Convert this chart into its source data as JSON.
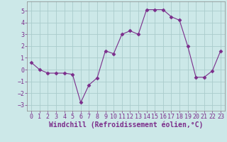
{
  "x": [
    0,
    1,
    2,
    3,
    4,
    5,
    6,
    7,
    8,
    9,
    10,
    11,
    12,
    13,
    14,
    15,
    16,
    17,
    18,
    19,
    20,
    21,
    22,
    23
  ],
  "y": [
    0.6,
    0.0,
    -0.3,
    -0.3,
    -0.3,
    -0.4,
    -2.8,
    -1.3,
    -0.7,
    1.6,
    1.35,
    3.0,
    3.3,
    3.0,
    5.1,
    5.1,
    5.1,
    4.5,
    4.2,
    2.0,
    -0.65,
    -0.65,
    -0.1,
    1.6
  ],
  "line_color": "#7b2d8b",
  "marker": "D",
  "marker_size": 2.5,
  "bg_color": "#cce8e8",
  "grid_color": "#aacccc",
  "xlabel": "Windchill (Refroidissement éolien,°C)",
  "xlim": [
    -0.5,
    23.5
  ],
  "ylim": [
    -3.5,
    5.8
  ],
  "yticks": [
    -3,
    -2,
    -1,
    0,
    1,
    2,
    3,
    4,
    5
  ],
  "xticks": [
    0,
    1,
    2,
    3,
    4,
    5,
    6,
    7,
    8,
    9,
    10,
    11,
    12,
    13,
    14,
    15,
    16,
    17,
    18,
    19,
    20,
    21,
    22,
    23
  ],
  "tick_color": "#7b2d8b",
  "label_color": "#7b2d8b",
  "label_fontsize": 7,
  "tick_fontsize": 6
}
